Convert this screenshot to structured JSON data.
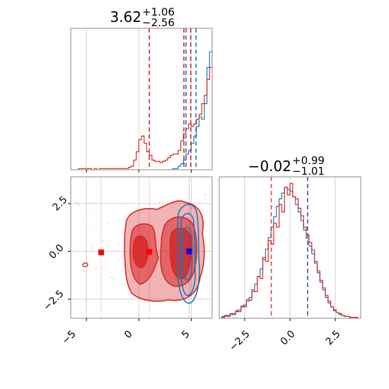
{
  "chart_data": [
    {
      "type": "histogram",
      "panel": "marginal-x",
      "title": {
        "main": "3.62",
        "sup": "+1.06",
        "sub": "−2.56"
      },
      "xlim": [
        -6.5,
        7
      ],
      "grid": true,
      "series": [
        {
          "name": "",
          "color": "#1f77b4",
          "edges_start": 3.0,
          "bin_width": 0.25,
          "values": [
            0,
            1,
            1,
            3,
            5,
            8,
            13,
            16,
            22,
            28,
            36,
            44,
            42,
            55,
            85,
            98,
            112,
            88,
            52,
            26,
            11,
            5,
            2,
            1,
            0
          ]
        },
        {
          "name": "",
          "color": "#d62728",
          "edges_start": -6.0,
          "bin_width": 0.25,
          "values": [
            0,
            1,
            1,
            1,
            1,
            1,
            0,
            1,
            0,
            1,
            1,
            1,
            1,
            1,
            1,
            1,
            1,
            1,
            1,
            1,
            2,
            3,
            8,
            15,
            25,
            28,
            22,
            15,
            12,
            8,
            7,
            7,
            6,
            7,
            8,
            10,
            12,
            13,
            13,
            16,
            24,
            30,
            34,
            38,
            36,
            38,
            42,
            46,
            55,
            62,
            75,
            85,
            96,
            102,
            110,
            92,
            72,
            54,
            30,
            15,
            10,
            8,
            5,
            3,
            2,
            1,
            0,
            0,
            0,
            0
          ]
        }
      ],
      "vlines": [
        {
          "x": 1.0,
          "color": "#d62728"
        },
        {
          "x": 4.3,
          "color": "#d62728"
        },
        {
          "x": 4.95,
          "color": "#d62728"
        },
        {
          "x": 4.5,
          "color": "#1f77b4"
        },
        {
          "x": 5.45,
          "color": "#1f77b4"
        }
      ]
    },
    {
      "type": "scatter",
      "panel": "joint",
      "xlim": [
        -6.5,
        7
      ],
      "ylim": [
        -3.5,
        3.9
      ],
      "xticks": [
        "−5",
        "0",
        "5"
      ],
      "xtick_values": [
        -5,
        0,
        5
      ],
      "yticks": [
        "2.5",
        "0.0",
        "−2.5"
      ],
      "ytick_values": [
        2.5,
        0.0,
        -2.5
      ],
      "grid": true,
      "contours": [
        {
          "name": "",
          "color": "#d62728",
          "levels": 3
        },
        {
          "name": "",
          "color": "#1f77b4",
          "levels": 3
        }
      ],
      "markers": [
        {
          "x": -3.6,
          "y": -0.05,
          "color": "#ff0000"
        },
        {
          "x": 1.0,
          "y": -0.02,
          "color": "#ff0000"
        },
        {
          "x": 4.8,
          "y": 0.0,
          "color": "#0000ff"
        }
      ]
    },
    {
      "type": "histogram",
      "panel": "marginal-y",
      "title": {
        "main": "−0.02",
        "sup": "+0.99",
        "sub": "−1.01"
      },
      "xlim": [
        -3.9,
        3.9
      ],
      "xticks": [
        "−2.5",
        "0.0",
        "2.5"
      ],
      "xtick_values": [
        -2.5,
        0.0,
        2.5
      ],
      "grid": true,
      "series": [
        {
          "name": "",
          "color": "#1f77b4",
          "edges_start": -3.75,
          "bin_width": 0.15,
          "values": [
            2,
            2,
            3,
            4,
            5,
            7,
            9,
            12,
            14,
            18,
            22,
            28,
            36,
            44,
            52,
            62,
            73,
            85,
            96,
            107,
            118,
            126,
            132,
            138,
            136,
            134,
            128,
            120,
            112,
            103,
            93,
            84,
            76,
            68,
            58,
            48,
            38,
            30,
            22,
            16,
            12,
            8,
            6,
            4,
            3,
            2,
            2,
            1,
            1,
            1
          ]
        },
        {
          "name": "",
          "color": "#d62728",
          "edges_start": -3.75,
          "bin_width": 0.15,
          "values": [
            1,
            3,
            2,
            5,
            4,
            8,
            7,
            13,
            12,
            20,
            19,
            30,
            28,
            44,
            42,
            64,
            60,
            82,
            78,
            100,
            96,
            120,
            112,
            138,
            130,
            142,
            128,
            126,
            116,
            108,
            96,
            88,
            80,
            72,
            60,
            50,
            40,
            32,
            24,
            18,
            12,
            9,
            6,
            5,
            3,
            2,
            2,
            1,
            1,
            1
          ]
        }
      ],
      "vlines": [
        {
          "x": -1.03,
          "color": "#d62728"
        },
        {
          "x": 0.97,
          "color": "#d62728"
        },
        {
          "x": 0.97,
          "color": "#1f77b4"
        }
      ]
    }
  ]
}
